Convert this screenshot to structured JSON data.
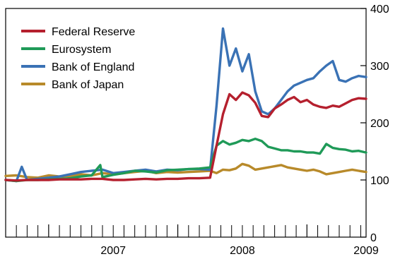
{
  "chart_data": {
    "type": "line",
    "title": "",
    "xlabel": "",
    "ylabel": "",
    "x_tick_labels": [
      "2007",
      "2008",
      "2009"
    ],
    "x_range": [
      2006.667,
      2009.458
    ],
    "y_axis_side": "right",
    "ylim": [
      0,
      400
    ],
    "y_ticks": [
      0,
      100,
      200,
      300,
      400
    ],
    "grid": false,
    "legend_position": "top-left",
    "series": [
      {
        "name": "Federal Reserve",
        "color": "#b5202e",
        "x": [
          2006.667,
          2006.75,
          2006.833,
          2006.917,
          2007.0,
          2007.083,
          2007.167,
          2007.25,
          2007.333,
          2007.417,
          2007.5,
          2007.583,
          2007.667,
          2007.75,
          2007.833,
          2007.917,
          2008.0,
          2008.083,
          2008.167,
          2008.25,
          2008.3,
          2008.35,
          2008.4,
          2008.45,
          2008.5,
          2008.55,
          2008.6,
          2008.65,
          2008.7,
          2008.75,
          2008.8,
          2008.85,
          2008.9,
          2008.95,
          2009.0,
          2009.05,
          2009.1,
          2009.15,
          2009.2,
          2009.25,
          2009.3,
          2009.35,
          2009.4,
          2009.458
        ],
        "values": [
          100,
          99,
          100,
          100,
          100,
          101,
          101,
          101,
          102,
          102,
          100,
          100,
          101,
          102,
          101,
          102,
          102,
          103,
          103,
          104,
          160,
          215,
          250,
          240,
          253,
          248,
          235,
          212,
          210,
          225,
          232,
          240,
          245,
          236,
          240,
          232,
          228,
          226,
          230,
          228,
          234,
          240,
          243,
          242
        ]
      },
      {
        "name": "Eurosystem",
        "color": "#1f9a58",
        "x": [
          2006.667,
          2006.75,
          2006.833,
          2006.917,
          2007.0,
          2007.083,
          2007.167,
          2007.25,
          2007.333,
          2007.4,
          2007.417,
          2007.5,
          2007.583,
          2007.667,
          2007.75,
          2007.833,
          2007.917,
          2008.0,
          2008.083,
          2008.167,
          2008.25,
          2008.3,
          2008.35,
          2008.4,
          2008.45,
          2008.5,
          2008.55,
          2008.6,
          2008.65,
          2008.7,
          2008.75,
          2008.8,
          2008.85,
          2008.9,
          2008.95,
          2009.0,
          2009.05,
          2009.1,
          2009.15,
          2009.2,
          2009.25,
          2009.3,
          2009.35,
          2009.4,
          2009.458
        ],
        "values": [
          100,
          98,
          100,
          100,
          101,
          102,
          103,
          106,
          108,
          126,
          105,
          109,
          112,
          116,
          115,
          113,
          117,
          118,
          119,
          120,
          122,
          160,
          168,
          162,
          165,
          170,
          168,
          172,
          168,
          158,
          155,
          152,
          152,
          150,
          150,
          148,
          148,
          146,
          163,
          156,
          154,
          153,
          150,
          151,
          148
        ]
      },
      {
        "name": "Bank of England",
        "color": "#3a72b5",
        "x": [
          2006.667,
          2006.75,
          2006.792,
          2006.833,
          2006.917,
          2007.0,
          2007.083,
          2007.167,
          2007.25,
          2007.333,
          2007.417,
          2007.5,
          2007.583,
          2007.667,
          2007.75,
          2007.833,
          2007.917,
          2008.0,
          2008.083,
          2008.167,
          2008.25,
          2008.3,
          2008.35,
          2008.4,
          2008.45,
          2008.5,
          2008.55,
          2008.6,
          2008.65,
          2008.7,
          2008.75,
          2008.8,
          2008.85,
          2008.9,
          2008.95,
          2009.0,
          2009.05,
          2009.1,
          2009.15,
          2009.2,
          2009.25,
          2009.3,
          2009.35,
          2009.4,
          2009.458
        ],
        "values": [
          100,
          98,
          123,
          100,
          102,
          104,
          106,
          110,
          114,
          116,
          118,
          112,
          114,
          116,
          118,
          115,
          118,
          117,
          119,
          119,
          118,
          230,
          365,
          300,
          330,
          290,
          320,
          255,
          220,
          215,
          225,
          240,
          255,
          265,
          270,
          275,
          278,
          290,
          300,
          308,
          275,
          272,
          278,
          282,
          280
        ]
      },
      {
        "name": "Bank of Japan",
        "color": "#b88a2a",
        "x": [
          2006.667,
          2006.75,
          2006.833,
          2006.917,
          2007.0,
          2007.083,
          2007.167,
          2007.25,
          2007.333,
          2007.417,
          2007.5,
          2007.583,
          2007.667,
          2007.75,
          2007.833,
          2007.917,
          2008.0,
          2008.083,
          2008.167,
          2008.25,
          2008.3,
          2008.35,
          2008.4,
          2008.45,
          2008.5,
          2008.55,
          2008.6,
          2008.65,
          2008.7,
          2008.75,
          2008.8,
          2008.85,
          2008.9,
          2008.95,
          2009.0,
          2009.05,
          2009.1,
          2009.15,
          2009.2,
          2009.25,
          2009.3,
          2009.35,
          2009.4,
          2009.458
        ],
        "values": [
          107,
          108,
          105,
          104,
          108,
          106,
          107,
          110,
          108,
          112,
          110,
          112,
          114,
          116,
          112,
          114,
          113,
          114,
          115,
          116,
          112,
          118,
          117,
          120,
          128,
          125,
          118,
          120,
          122,
          124,
          126,
          122,
          120,
          118,
          116,
          118,
          115,
          110,
          112,
          114,
          116,
          118,
          116,
          114
        ]
      }
    ]
  }
}
